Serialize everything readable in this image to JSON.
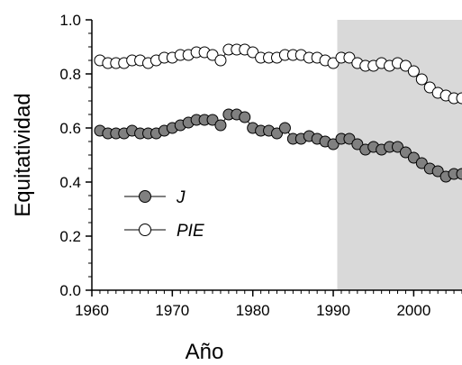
{
  "chart_data": {
    "type": "line",
    "x_label": "Año",
    "y_label": "Equitatividad",
    "x": [
      1961,
      1962,
      1963,
      1964,
      1965,
      1966,
      1967,
      1968,
      1969,
      1970,
      1971,
      1972,
      1973,
      1974,
      1975,
      1976,
      1977,
      1978,
      1979,
      1980,
      1981,
      1982,
      1983,
      1984,
      1985,
      1986,
      1987,
      1988,
      1989,
      1990,
      1991,
      1992,
      1993,
      1994,
      1995,
      1996,
      1997,
      1998,
      1999,
      2000,
      2001,
      2002,
      2003,
      2004,
      2005,
      2006
    ],
    "series": [
      {
        "name": "J",
        "color": "#808080",
        "values": [
          0.59,
          0.58,
          0.58,
          0.58,
          0.59,
          0.58,
          0.58,
          0.58,
          0.59,
          0.6,
          0.61,
          0.62,
          0.63,
          0.63,
          0.63,
          0.61,
          0.65,
          0.65,
          0.64,
          0.6,
          0.59,
          0.59,
          0.58,
          0.6,
          0.56,
          0.56,
          0.57,
          0.56,
          0.55,
          0.54,
          0.56,
          0.56,
          0.54,
          0.52,
          0.53,
          0.52,
          0.53,
          0.53,
          0.51,
          0.49,
          0.47,
          0.45,
          0.44,
          0.42,
          0.43,
          0.43
        ]
      },
      {
        "name": "PIE",
        "color": "#ffffff",
        "values": [
          0.85,
          0.84,
          0.84,
          0.84,
          0.85,
          0.85,
          0.84,
          0.85,
          0.86,
          0.86,
          0.87,
          0.87,
          0.88,
          0.88,
          0.87,
          0.85,
          0.89,
          0.89,
          0.89,
          0.88,
          0.86,
          0.86,
          0.86,
          0.87,
          0.87,
          0.87,
          0.86,
          0.86,
          0.85,
          0.84,
          0.86,
          0.86,
          0.84,
          0.83,
          0.83,
          0.84,
          0.83,
          0.84,
          0.83,
          0.81,
          0.78,
          0.75,
          0.73,
          0.72,
          0.71,
          0.71
        ]
      }
    ],
    "xlim": [
      1960,
      2006
    ],
    "xticks": [
      1960,
      1970,
      1980,
      1990,
      2000
    ],
    "ylim": [
      0,
      1
    ],
    "yticks": [
      {
        "value": 0,
        "label": "0.0"
      },
      0.2,
      0.4,
      0.6,
      0.8,
      {
        "value": 1,
        "label": "1.0"
      }
    ],
    "shaded_region": [
      1990.5,
      2006
    ],
    "shade_color": "#d9d9d9",
    "legend": "center left"
  }
}
